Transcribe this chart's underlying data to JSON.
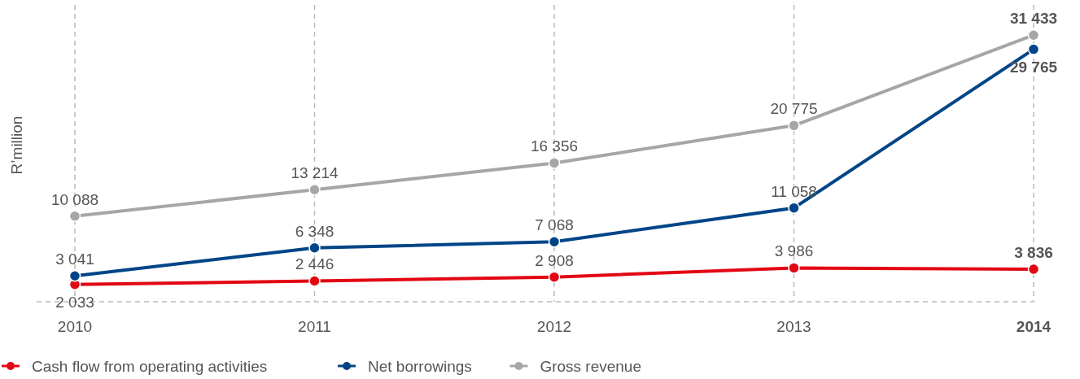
{
  "chart_data": {
    "type": "line",
    "ylabel": "R’million",
    "categories": [
      "2010",
      "2011",
      "2012",
      "2013",
      "2014"
    ],
    "ylim": [
      0,
      35000
    ],
    "grid": "x",
    "legend": "bottom left",
    "marker": "circle",
    "line_style": "solid",
    "tick_labels": "x",
    "series": [
      {
        "name": "Cash flow from operating activities",
        "color": "#e30613",
        "values": [
          2033,
          2446,
          2908,
          3986,
          3836
        ],
        "value_labels": [
          "2 033",
          "2 446",
          "2 908",
          "3 986",
          "3 836"
        ]
      },
      {
        "name": "Net borrowings",
        "color": "#004587",
        "values": [
          3041,
          6348,
          7068,
          11058,
          29765
        ],
        "value_labels": [
          "3 041",
          "6 348",
          "7 068",
          "11 058",
          "29 765"
        ]
      },
      {
        "name": "Gross revenue",
        "color": "#a6a6a6",
        "values": [
          10088,
          13214,
          16356,
          20775,
          31433
        ],
        "value_labels": [
          "10 088",
          "13 214",
          "16 356",
          "20 775",
          "31 433"
        ]
      }
    ]
  }
}
